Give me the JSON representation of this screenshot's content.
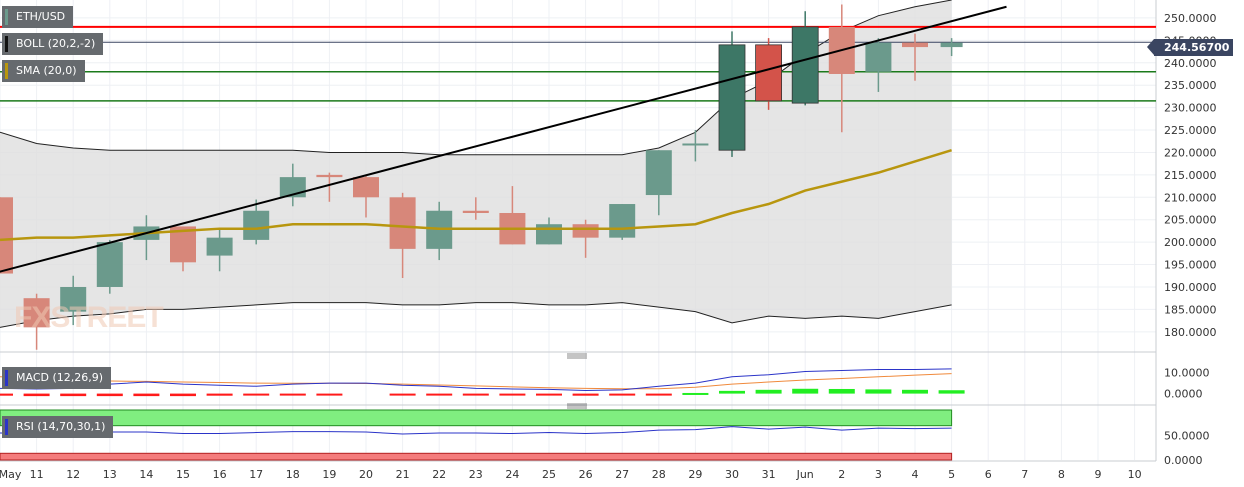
{
  "symbol": "ETH/USD",
  "watermark": "FXSTREET",
  "current_price_tag": "244.56700",
  "indicators": {
    "boll": {
      "label": "BOLL (20,2,-2)",
      "color": "#111111"
    },
    "sma": {
      "label": "SMA (20,0)",
      "color": "#b8960e"
    },
    "macd": {
      "label": "MACD (12,26,9)",
      "color": "#2b34c8"
    },
    "rsi": {
      "label": "RSI (14,70,30,1)",
      "color": "#2b34c8"
    }
  },
  "colors": {
    "bull": "#6b9a8c",
    "bull_active": "#3d7766",
    "bear": "#d7877a",
    "bear_active": "#d3534a",
    "resistance": "#ff0000",
    "support": "#1b7a1b",
    "trendline": "#000000",
    "band_fill": "#dedede",
    "rsi_overbought": "#80ee80",
    "rsi_oversold": "#f47c7c"
  },
  "chart_data": [
    {
      "type": "candlestick",
      "name": "price",
      "x_labels": [
        "May",
        "11",
        "12",
        "13",
        "14",
        "15",
        "16",
        "17",
        "18",
        "19",
        "20",
        "21",
        "22",
        "23",
        "24",
        "25",
        "26",
        "27",
        "28",
        "29",
        "30",
        "31",
        "Jun",
        "2",
        "3",
        "4",
        "5",
        "6",
        "7",
        "8",
        "9",
        "10"
      ],
      "y_ticks": [
        "250.0000",
        "245.0000",
        "240.0000",
        "235.0000",
        "230.0000",
        "225.0000",
        "220.0000",
        "215.0000",
        "210.0000",
        "205.0000",
        "200.0000",
        "195.0000",
        "190.0000",
        "185.0000",
        "180.0000"
      ],
      "ylim": [
        175.5,
        254
      ],
      "candles": [
        {
          "o": 210.0,
          "h": 210.0,
          "l": 193.0,
          "c": 193.0
        },
        {
          "o": 187.5,
          "h": 188.5,
          "l": 176.0,
          "c": 181.0
        },
        {
          "o": 184.5,
          "h": 192.5,
          "l": 181.5,
          "c": 190.0
        },
        {
          "o": 190.0,
          "h": 200.5,
          "l": 188.5,
          "c": 200.0
        },
        {
          "o": 200.5,
          "h": 206.0,
          "l": 196.0,
          "c": 203.5
        },
        {
          "o": 203.5,
          "h": 203.5,
          "l": 193.5,
          "c": 195.5
        },
        {
          "o": 197.0,
          "h": 203.0,
          "l": 193.5,
          "c": 201.0
        },
        {
          "o": 200.5,
          "h": 209.5,
          "l": 199.5,
          "c": 207.0
        },
        {
          "o": 210.0,
          "h": 217.5,
          "l": 208.0,
          "c": 214.5
        },
        {
          "o": 215.0,
          "h": 215.5,
          "l": 209.0,
          "c": 214.5
        },
        {
          "o": 214.5,
          "h": 215.0,
          "l": 205.5,
          "c": 210.0
        },
        {
          "o": 210.0,
          "h": 211.0,
          "l": 192.0,
          "c": 198.5
        },
        {
          "o": 198.5,
          "h": 209.0,
          "l": 196.0,
          "c": 207.0
        },
        {
          "o": 207.0,
          "h": 210.0,
          "l": 205.0,
          "c": 206.5
        },
        {
          "o": 206.5,
          "h": 212.5,
          "l": 199.5,
          "c": 199.5
        },
        {
          "o": 199.5,
          "h": 205.5,
          "l": 199.5,
          "c": 204.0
        },
        {
          "o": 204.0,
          "h": 205.0,
          "l": 196.5,
          "c": 201.0
        },
        {
          "o": 201.0,
          "h": 208.5,
          "l": 200.5,
          "c": 208.5
        },
        {
          "o": 210.5,
          "h": 220.5,
          "l": 206.0,
          "c": 220.5
        },
        {
          "o": 222.0,
          "h": 225.0,
          "l": 218.0,
          "c": 222.0
        },
        {
          "o": 220.5,
          "h": 247.0,
          "l": 219.0,
          "c": 244.0
        },
        {
          "o": 244.0,
          "h": 245.5,
          "l": 229.5,
          "c": 231.5
        },
        {
          "o": 231.0,
          "h": 251.5,
          "l": 230.5,
          "c": 248.0
        },
        {
          "o": 248.0,
          "h": 253.0,
          "l": 224.5,
          "c": 237.5
        },
        {
          "o": 238.0,
          "h": 245.5,
          "l": 233.5,
          "c": 244.5
        },
        {
          "o": 244.5,
          "h": 246.5,
          "l": 236.0,
          "c": 243.5
        },
        {
          "o": 243.5,
          "h": 245.5,
          "l": 241.5,
          "c": 244.5
        }
      ],
      "bollinger_upper": [
        224.5,
        222,
        221,
        220.5,
        220.5,
        220.5,
        220.5,
        220.5,
        220.5,
        220,
        220,
        220,
        219.5,
        219.5,
        219.5,
        219.5,
        219.5,
        219.5,
        221,
        224.5,
        232,
        236,
        242,
        247,
        250.5,
        252.5,
        254
      ],
      "bollinger_lower": [
        181,
        182.5,
        183.5,
        184,
        185,
        185,
        185.5,
        186,
        186.5,
        186.5,
        186.5,
        186,
        186,
        186.5,
        186.5,
        186,
        186,
        186.5,
        185.5,
        184.5,
        182,
        183.5,
        183,
        183.5,
        183,
        184.5,
        186
      ],
      "sma": [
        200.5,
        201,
        201,
        201.5,
        202,
        202.5,
        203,
        203,
        204,
        204,
        204,
        203.5,
        203,
        203,
        203,
        203,
        203,
        203,
        203.5,
        204,
        206.5,
        208.5,
        211.5,
        213.5,
        215.5,
        218,
        220.5
      ],
      "levels": {
        "resistance": 248.0,
        "support_1": 238.0,
        "support_2": 231.5,
        "current": 244.567
      },
      "trendline": [
        {
          "x": -0.2,
          "y": 193.0
        },
        {
          "x": 27.5,
          "y": 252.5
        }
      ]
    },
    {
      "type": "bar",
      "name": "MACD (12,26,9)",
      "y_ticks": [
        "10.0000",
        "0.0000"
      ],
      "ylim": [
        -4,
        16
      ],
      "histogram": [
        -1,
        -1.2,
        -1.2,
        -1.2,
        -1.2,
        -1.2,
        -1.0,
        -0.9,
        -0.6,
        -0.3,
        null,
        -0.2,
        -0.4,
        -0.6,
        -0.8,
        -0.7,
        -1.0,
        -0.8,
        -0.3,
        0.3,
        1.3,
        1.8,
        2.3,
        2.2,
        2.0,
        1.8,
        1.6
      ],
      "macd_line": [
        2.5,
        2.2,
        2.5,
        4.5,
        5.5,
        4.5,
        4.0,
        3.5,
        4.5,
        5,
        5,
        4,
        3.5,
        2.5,
        2.2,
        2,
        1.5,
        1.8,
        3.5,
        5,
        8,
        9,
        10.5,
        11,
        11.5,
        11.5,
        11.8
      ],
      "signal_line": [
        8,
        7.3,
        6.5,
        6,
        5.8,
        5.5,
        5.3,
        5,
        4.9,
        4.9,
        4.8,
        4.5,
        4.1,
        3.7,
        3.2,
        2.8,
        2.5,
        2.3,
        2.3,
        3.0,
        4.5,
        5.5,
        6.5,
        7.2,
        8.0,
        8.8,
        9.5
      ]
    },
    {
      "type": "line",
      "name": "RSI (14,70,30,1)",
      "y_ticks": [
        "50.0000",
        "0.0000"
      ],
      "ylim": [
        0,
        102
      ],
      "overbought": 70,
      "oversold": 30,
      "values": [
        55,
        54,
        54,
        57,
        57,
        54,
        54,
        56,
        58,
        58,
        57,
        53,
        55,
        55,
        54,
        56,
        54,
        56,
        61,
        62,
        68,
        63,
        67,
        61,
        65,
        64,
        65
      ]
    }
  ]
}
